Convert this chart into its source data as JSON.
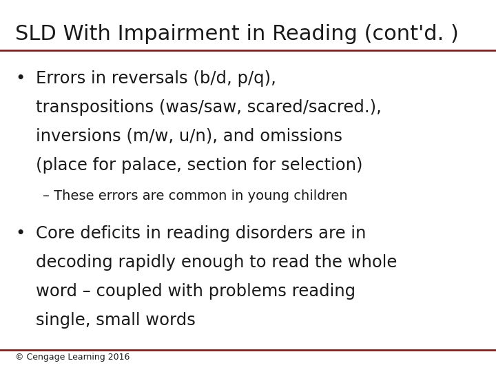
{
  "title": "SLD With Impairment in Reading (cont'd. )",
  "title_fontsize": 22,
  "title_color": "#1a1a1a",
  "bg_color": "#ffffff",
  "separator_color": "#8b1a1a",
  "bullet1_lines": [
    "Errors in reversals (b/d, p/q),",
    "transpositions (was/saw, scared/sacred.),",
    "inversions (m/w, u/n), and omissions",
    "(place for palace, section for selection)"
  ],
  "bullet1_fontsize": 17.5,
  "sub_bullet": "– These errors are common in young children",
  "sub_bullet_fontsize": 14,
  "bullet2_lines": [
    "Core deficits in reading disorders are in",
    "decoding rapidly enough to read the whole",
    "word – coupled with problems reading",
    "single, small words"
  ],
  "bullet2_fontsize": 17.5,
  "footer": "© Cengage Learning 2016",
  "footer_fontsize": 9,
  "text_color": "#1a1a1a",
  "bullet_color": "#1a1a1a"
}
